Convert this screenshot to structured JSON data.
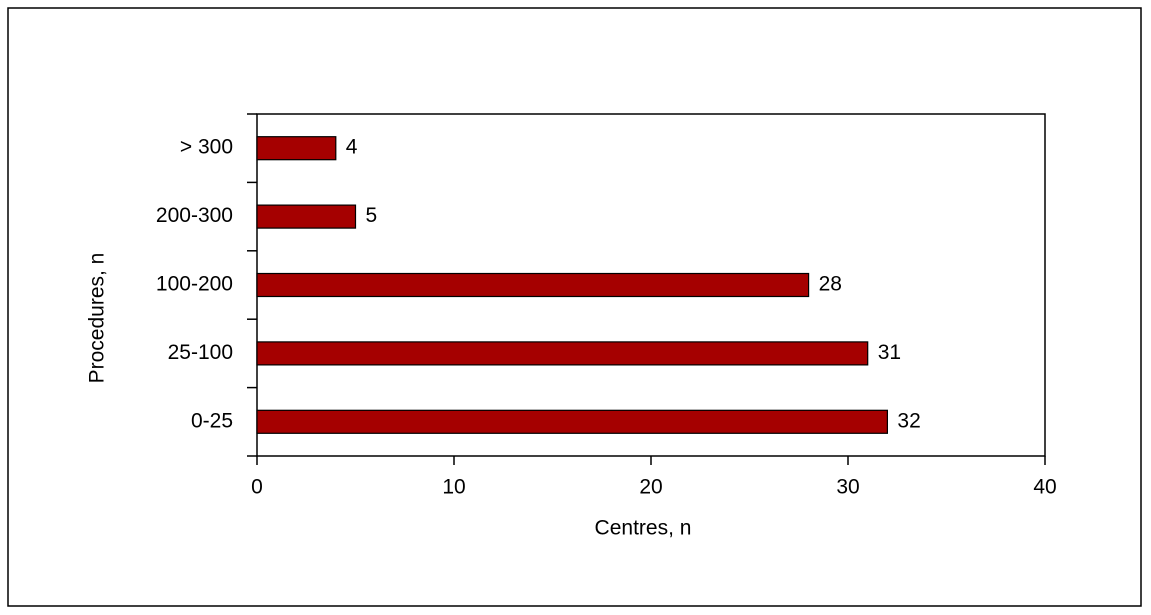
{
  "chart_data": {
    "type": "bar",
    "orientation": "horizontal",
    "x_label": "Centres, n",
    "y_label": "Procedures, n",
    "categories": [
      "> 300",
      "200-300",
      "100-200",
      "25-100",
      "0-25"
    ],
    "values": [
      4,
      5,
      28,
      31,
      32
    ],
    "color": "#a50000",
    "xlim": [
      0,
      40
    ],
    "xticks": [
      0,
      10,
      20,
      30,
      40
    ]
  }
}
